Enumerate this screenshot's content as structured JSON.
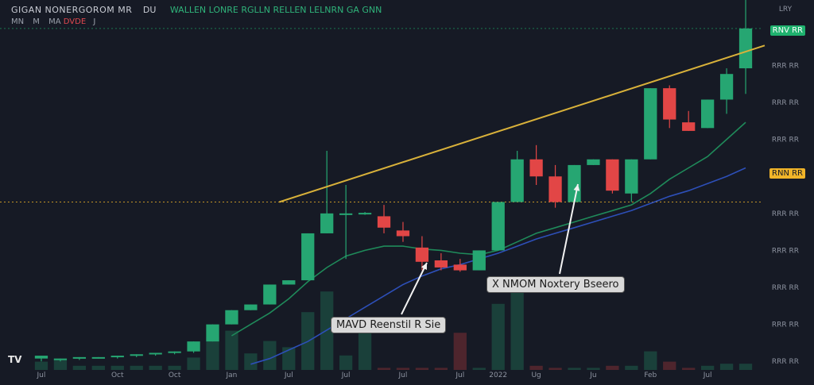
{
  "header": {
    "symbol": "GIGAN NONERGOROM MR",
    "interval": "DU",
    "values_text": "WALLEN LONRE RGLLN RELLEN LELNRN GA GNN",
    "sub_left": "MN",
    "sub_mid": "M",
    "sub_ma": "MA",
    "sub_neg": "DVDE",
    "sub_sym": "J"
  },
  "logo": "TV",
  "colors": {
    "bg": "#161a25",
    "up": "#26a672",
    "down": "#e24646",
    "trendline": "#d8b13a",
    "ma_fast": "#1f8a5a",
    "ma_slow": "#2d4fb8",
    "last_price_bg": "#1fb26e",
    "level_bg": "#f0b429"
  },
  "annotations": {
    "callout_left": "MAVD Reenstil R Sie",
    "callout_right": "X NMOM Noxtery Bseero"
  },
  "chart_data": {
    "type": "candlestick",
    "title": "",
    "y_ticks": [
      "LRY",
      "RNV RR",
      "RRR RR",
      "RRR RR",
      "RRR RR",
      "RRR RR",
      "RRR RR",
      "RRR RR",
      "RRR RR",
      "RRR RR",
      "RRR RR"
    ],
    "y_tick_values": [
      100,
      93,
      80,
      67,
      54,
      41,
      28,
      15,
      2,
      -11,
      -24
    ],
    "x_ticks": [
      "Jul",
      "Oct",
      "Oct",
      "Jan",
      "Jul",
      "Jul",
      "Jul",
      "Jul",
      "2022",
      "Ug",
      "Ju",
      "Feb",
      "Jul"
    ],
    "x_tick_index": [
      0,
      4,
      7,
      10,
      13,
      16,
      19,
      22,
      24,
      26,
      29,
      32,
      35
    ],
    "ylim": [
      -27,
      103
    ],
    "last_price_label": "RNV RR",
    "level_label": "RNN RR",
    "level_value": 32,
    "candles": [
      {
        "o": -23,
        "h": -22,
        "l": -24,
        "c": -22
      },
      {
        "o": -23.5,
        "h": -23,
        "l": -24,
        "c": -23
      },
      {
        "o": -23,
        "h": -22.5,
        "l": -23.5,
        "c": -22.5
      },
      {
        "o": -23,
        "h": -22.5,
        "l": -23,
        "c": -22.5
      },
      {
        "o": -22.5,
        "h": -22,
        "l": -23,
        "c": -22
      },
      {
        "o": -22,
        "h": -21.5,
        "l": -22.5,
        "c": -21.5
      },
      {
        "o": -21.5,
        "h": -21,
        "l": -22,
        "c": -21
      },
      {
        "o": -21,
        "h": -20.5,
        "l": -21.5,
        "c": -20.5
      },
      {
        "o": -20.5,
        "h": -17,
        "l": -21,
        "c": -17
      },
      {
        "o": -17,
        "h": -11,
        "l": -17,
        "c": -11
      },
      {
        "o": -11,
        "h": -6,
        "l": -11,
        "c": -6
      },
      {
        "o": -6,
        "h": -4,
        "l": -6,
        "c": -4
      },
      {
        "o": -4,
        "h": 3,
        "l": -4,
        "c": 3
      },
      {
        "o": 3,
        "h": 4.5,
        "l": 3,
        "c": 4.5
      },
      {
        "o": 4.5,
        "h": 21,
        "l": 4.5,
        "c": 21
      },
      {
        "o": 21,
        "h": 50,
        "l": 21,
        "c": 28
      },
      {
        "o": 28,
        "h": 38,
        "l": 12,
        "c": 28
      },
      {
        "o": 28,
        "h": 28.5,
        "l": 27.5,
        "c": 28.2
      },
      {
        "o": 27,
        "h": 31,
        "l": 21,
        "c": 23
      },
      {
        "o": 22,
        "h": 25,
        "l": 18,
        "c": 20
      },
      {
        "o": 16,
        "h": 20,
        "l": 8,
        "c": 11
      },
      {
        "o": 11.5,
        "h": 14,
        "l": 8,
        "c": 9
      },
      {
        "o": 10,
        "h": 12,
        "l": 7.5,
        "c": 8
      },
      {
        "o": 8,
        "h": 15,
        "l": 8,
        "c": 15
      },
      {
        "o": 15,
        "h": 32,
        "l": 15,
        "c": 32
      },
      {
        "o": 32,
        "h": 50,
        "l": 32,
        "c": 47
      },
      {
        "o": 47,
        "h": 52,
        "l": 38,
        "c": 41
      },
      {
        "o": 41,
        "h": 45,
        "l": 30,
        "c": 32
      },
      {
        "o": 32,
        "h": 45,
        "l": 32,
        "c": 45
      },
      {
        "o": 45,
        "h": 47,
        "l": 45,
        "c": 47
      },
      {
        "o": 47,
        "h": 47,
        "l": 35,
        "c": 36
      },
      {
        "o": 35,
        "h": 47,
        "l": 32,
        "c": 47
      },
      {
        "o": 47,
        "h": 72,
        "l": 47,
        "c": 72
      },
      {
        "o": 72,
        "h": 73,
        "l": 58,
        "c": 61
      },
      {
        "o": 60,
        "h": 64,
        "l": 57,
        "c": 57
      },
      {
        "o": 58,
        "h": 68,
        "l": 58,
        "c": 68
      },
      {
        "o": 68,
        "h": 79,
        "l": 63,
        "c": 77
      },
      {
        "o": 79,
        "h": 103,
        "l": 70,
        "c": 93
      }
    ],
    "volume": [
      4,
      5,
      2,
      2,
      2,
      2,
      2,
      2,
      6,
      16,
      19,
      8,
      14,
      11,
      28,
      38,
      7,
      23,
      1,
      1,
      1,
      1,
      18,
      1,
      32,
      42,
      2,
      1,
      1,
      1,
      2,
      2,
      9,
      4,
      1,
      2,
      3,
      3
    ],
    "volume_max": 50,
    "ma_fast": [
      -23,
      -23,
      -23,
      -23,
      -22.5,
      -22,
      -21.5,
      -21,
      -20,
      -18,
      -15,
      -11,
      -7,
      -2,
      4,
      9,
      13,
      15,
      16.5,
      16.5,
      15.5,
      15,
      14,
      13.5,
      15,
      18,
      21,
      23,
      25,
      27,
      29,
      31,
      35,
      40,
      44,
      48,
      54,
      60
    ],
    "ma_slow": [
      -26,
      -26,
      -26,
      -26,
      -26,
      -26,
      -26,
      -26,
      -26,
      -26,
      -26,
      -25,
      -23,
      -20,
      -17,
      -13,
      -9,
      -5,
      -1,
      3,
      6,
      8.5,
      10,
      12,
      14,
      16.5,
      19,
      21,
      23,
      25,
      27,
      29,
      31.5,
      34,
      36,
      38.5,
      41,
      44
    ],
    "ma_fast_start": 10,
    "ma_slow_start": 11,
    "trendline": {
      "x0": 12.5,
      "y0": 32,
      "x1": 38,
      "y1": 87
    }
  }
}
